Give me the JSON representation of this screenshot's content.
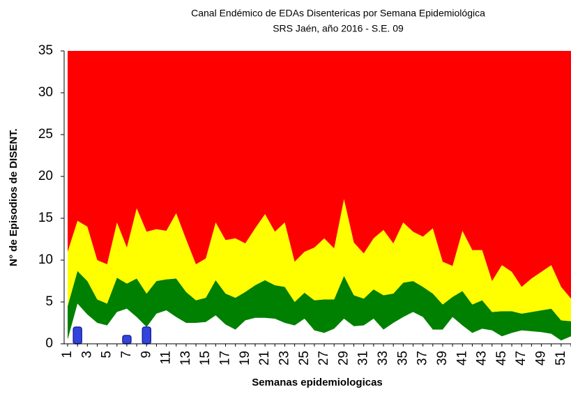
{
  "chart_data": {
    "type": "stacked-area",
    "title": "Canal Endémico de EDAs Disentericas por Semana Epidemiológica",
    "subtitle": "SRS Jaén, año 2016 - S.E. 09",
    "x_label": "Semanas epidemiologicas",
    "y_label": "N° de Episodios de DISENT.",
    "categories": [
      "1",
      null,
      "3",
      null,
      "5",
      null,
      "7",
      null,
      "9",
      null,
      "11",
      null,
      "13",
      null,
      "15",
      null,
      "17",
      null,
      "19",
      null,
      "21",
      null,
      "23",
      null,
      "25",
      null,
      "27",
      null,
      "29",
      null,
      "31",
      null,
      "33",
      null,
      "35",
      null,
      "37",
      null,
      "39",
      null,
      "41",
      null,
      "43",
      null,
      "45",
      null,
      "47",
      null,
      "49",
      null,
      "51",
      null
    ],
    "series": [
      {
        "color": "#ffffff",
        "values": [
          0.5,
          4.8,
          3.5,
          2.5,
          2.2,
          3.8,
          4.2,
          3.2,
          2.0,
          3.6,
          4.0,
          3.2,
          2.5,
          2.5,
          2.6,
          3.4,
          2.3,
          1.7,
          2.8,
          3.1,
          3.1,
          3.0,
          2.5,
          2.2,
          3.0,
          1.6,
          1.3,
          1.8,
          3.0,
          2.1,
          2.2,
          3.0,
          1.7,
          2.5,
          3.2,
          3.8,
          3.2,
          1.7,
          1.7,
          3.2,
          2.2,
          1.3,
          1.8,
          1.6,
          0.9,
          1.3,
          1.6,
          1.5,
          1.4,
          1.2,
          0.4,
          0.9
        ]
      },
      {
        "color": "#008000",
        "values": [
          4.0,
          3.9,
          4.0,
          2.8,
          2.6,
          4.1,
          3.0,
          4.6,
          4.0,
          3.9,
          3.7,
          4.6,
          3.7,
          2.7,
          2.9,
          4.2,
          3.7,
          3.8,
          3.4,
          3.9,
          4.5,
          4.0,
          4.3,
          2.8,
          3.1,
          3.6,
          4.0,
          3.5,
          5.1,
          3.7,
          3.2,
          3.5,
          4.1,
          3.5,
          4.1,
          3.7,
          3.6,
          4.3,
          3.0,
          2.4,
          4.1,
          3.4,
          3.4,
          2.2,
          3.0,
          2.6,
          2.0,
          2.3,
          2.6,
          3.0,
          2.4,
          1.8
        ]
      },
      {
        "color": "#ffff00",
        "values": [
          6.5,
          6.0,
          6.5,
          4.7,
          4.7,
          6.6,
          4.3,
          8.4,
          7.4,
          6.2,
          5.8,
          7.8,
          6.3,
          4.3,
          4.7,
          6.9,
          6.4,
          7.1,
          5.8,
          6.8,
          7.9,
          6.4,
          7.7,
          4.8,
          4.9,
          6.3,
          7.3,
          6.1,
          9.2,
          6.3,
          5.4,
          6.1,
          7.8,
          6.0,
          7.2,
          5.9,
          6.0,
          7.8,
          5.1,
          3.7,
          7.2,
          6.5,
          6.0,
          3.7,
          5.5,
          4.7,
          3.2,
          4.0,
          4.6,
          5.2,
          4.0,
          2.7
        ]
      },
      {
        "color": "#ff0000",
        "values": [
          24.0,
          20.3,
          21.0,
          25.0,
          25.5,
          20.5,
          23.5,
          18.8,
          21.6,
          21.3,
          21.5,
          19.4,
          22.5,
          25.5,
          24.8,
          20.5,
          22.6,
          22.4,
          23.0,
          21.2,
          19.5,
          21.6,
          20.5,
          25.2,
          24.0,
          23.5,
          22.4,
          23.6,
          17.7,
          22.9,
          24.2,
          22.4,
          21.4,
          23.0,
          20.5,
          21.6,
          22.2,
          21.2,
          25.2,
          25.7,
          21.5,
          23.8,
          23.8,
          27.5,
          25.6,
          26.4,
          28.2,
          27.2,
          26.4,
          25.6,
          28.2,
          29.6
        ]
      }
    ],
    "cases": {
      "type": "bar",
      "color": "#3344dd",
      "values": [
        null,
        2,
        null,
        null,
        null,
        null,
        1,
        null,
        2,
        null,
        null,
        null,
        null,
        null,
        null,
        null,
        null,
        null,
        null,
        null,
        null,
        null,
        null,
        null,
        null,
        null,
        null,
        null,
        null,
        null,
        null,
        null,
        null,
        null,
        null,
        null,
        null,
        null,
        null,
        null,
        null,
        null,
        null,
        null,
        null,
        null,
        null,
        null,
        null,
        null,
        null,
        null
      ]
    },
    "ylim": [
      0,
      35
    ],
    "yticks": [
      0,
      5,
      10,
      15,
      20,
      25,
      30,
      35
    ]
  }
}
